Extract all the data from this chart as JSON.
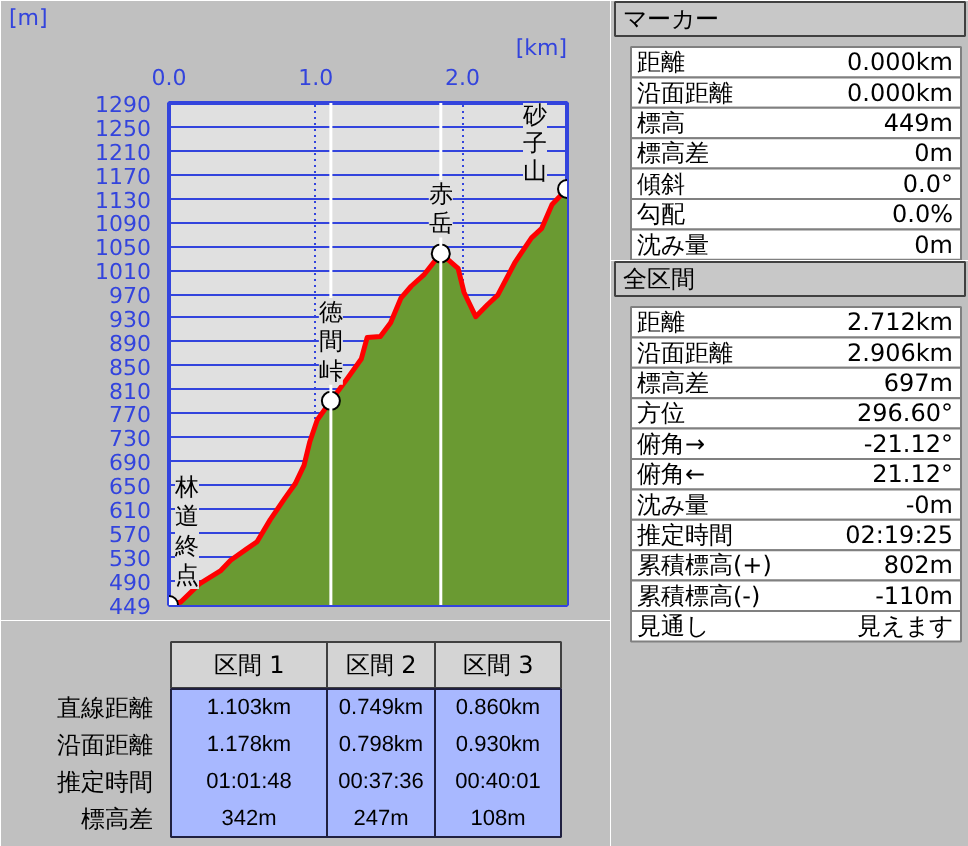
{
  "chart_data": [
    {
      "type": "area",
      "xlabel": "[km]",
      "ylabel": "[m]",
      "x": [
        0,
        0.08,
        0.21,
        0.35,
        0.42,
        0.53,
        0.6,
        0.69,
        0.79,
        0.86,
        0.92,
        0.96,
        1.01,
        1.103,
        1.22,
        1.31,
        1.35,
        1.44,
        1.51,
        1.58,
        1.65,
        1.74,
        1.852,
        1.97,
        2.01,
        2.09,
        2.17,
        2.24,
        2.36,
        2.47,
        2.54,
        2.61,
        2.712
      ],
      "series": [
        {
          "color": "#6a9a32",
          "values": [
            449,
            454,
            485,
            506,
            524,
            543,
            555,
            592,
            628,
            652,
            683,
            723,
            759,
            791,
            830,
            861,
            897,
            899,
            922,
            963,
            983,
            1003,
            1038,
            1013,
            973,
            932,
            952,
            968,
            1024,
            1064,
            1080,
            1120,
            1146
          ]
        }
      ],
      "xlim": [
        0,
        2.712
      ],
      "ylim": [
        449,
        1290
      ],
      "xticks": [
        {
          "value": 0,
          "label": "0.0"
        },
        {
          "value": 1,
          "label": "1.0"
        },
        {
          "value": 2,
          "label": "2.0"
        }
      ],
      "yticks": [
        449,
        490,
        530,
        570,
        610,
        650,
        690,
        730,
        770,
        810,
        850,
        890,
        930,
        970,
        1010,
        1050,
        1090,
        1130,
        1170,
        1210,
        1250,
        1290
      ],
      "grid": true,
      "annotations": [
        {
          "text": "林道終点",
          "x": 0,
          "y": 449
        },
        {
          "text": "徳間峠",
          "x": 1.103,
          "y": 791
        },
        {
          "text": "赤岳",
          "x": 1.852,
          "y": 1038
        },
        {
          "text": "砂子山",
          "x": 2.712,
          "y": 1146
        }
      ],
      "ref_lines": [
        {
          "axis": "x",
          "value": 1.103,
          "color": "#ffffff"
        },
        {
          "axis": "x",
          "value": 1.852,
          "color": "#ffffff"
        }
      ]
    },
    {
      "type": "other",
      "title": "マーカー",
      "y_categories": [
        "距離",
        "沿面距離",
        "標高",
        "標高差",
        "傾斜",
        "勾配",
        "沈み量"
      ],
      "cell_labels": [
        [
          "0.000km"
        ],
        [
          "0.000km"
        ],
        [
          "449m"
        ],
        [
          "0m"
        ],
        [
          "0.0°"
        ],
        [
          "0.0%"
        ],
        [
          "0m"
        ]
      ]
    },
    {
      "type": "other",
      "title": "全区間",
      "y_categories": [
        "距離",
        "沿面距離",
        "標高差",
        "方位",
        "俯角→",
        "俯角←",
        "沈み量",
        "推定時間",
        "累積標高(+)",
        "累積標高(-)",
        "見通し"
      ],
      "cell_labels": [
        [
          "2.712km"
        ],
        [
          "2.906km"
        ],
        [
          "697m"
        ],
        [
          "296.60°"
        ],
        [
          "-21.12°"
        ],
        [
          "21.12°"
        ],
        [
          "-0m"
        ],
        [
          "02:19:25"
        ],
        [
          "802m"
        ],
        [
          "-110m"
        ],
        [
          "見えます"
        ]
      ]
    },
    {
      "type": "other",
      "categories": [
        "区間 1",
        "区間 2",
        "区間 3"
      ],
      "y_categories": [
        "直線距離",
        "沿面距離",
        "推定時間",
        "標高差"
      ],
      "cell_labels": [
        [
          "1.103km",
          "0.749km",
          "0.860km"
        ],
        [
          "1.178km",
          "0.798km",
          "0.930km"
        ],
        [
          "01:01:48",
          "00:37:36",
          "00:40:01"
        ],
        [
          "342m",
          "247m",
          "108m"
        ]
      ]
    }
  ]
}
